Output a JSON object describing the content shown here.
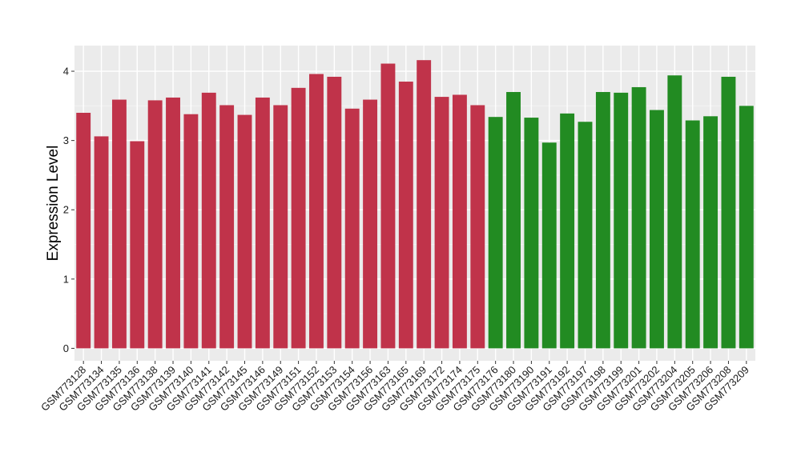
{
  "chart_data": {
    "type": "bar",
    "title": "",
    "xlabel": "",
    "ylabel": "Expression Level",
    "ylim": [
      -0.18,
      4.37
    ],
    "yticks": [
      0,
      1,
      2,
      3,
      4
    ],
    "grid": true,
    "legend": "none",
    "categories": [
      "GSM773128",
      "GSM773134",
      "GSM773135",
      "GSM773136",
      "GSM773138",
      "GSM773139",
      "GSM773140",
      "GSM773141",
      "GSM773142",
      "GSM773145",
      "GSM773146",
      "GSM773149",
      "GSM773151",
      "GSM773152",
      "GSM773153",
      "GSM773154",
      "GSM773156",
      "GSM773163",
      "GSM773165",
      "GSM773169",
      "GSM773172",
      "GSM773174",
      "GSM773175",
      "GSM773176",
      "GSM773180",
      "GSM773190",
      "GSM773191",
      "GSM773192",
      "GSM773197",
      "GSM773198",
      "GSM773199",
      "GSM773201",
      "GSM773202",
      "GSM773204",
      "GSM773205",
      "GSM773206",
      "GSM773208",
      "GSM773209"
    ],
    "values": [
      3.4,
      3.06,
      3.59,
      2.99,
      3.58,
      3.62,
      3.38,
      3.69,
      3.51,
      3.37,
      3.62,
      3.51,
      3.76,
      3.96,
      3.92,
      3.46,
      3.59,
      4.11,
      3.85,
      4.16,
      3.63,
      3.66,
      3.51,
      3.34,
      3.7,
      3.33,
      2.97,
      3.39,
      3.27,
      3.7,
      3.69,
      3.77,
      3.44,
      3.94,
      3.29,
      3.35,
      3.92,
      3.5
    ],
    "group_colors": [
      "#c0334a",
      "#c0334a",
      "#c0334a",
      "#c0334a",
      "#c0334a",
      "#c0334a",
      "#c0334a",
      "#c0334a",
      "#c0334a",
      "#c0334a",
      "#c0334a",
      "#c0334a",
      "#c0334a",
      "#c0334a",
      "#c0334a",
      "#c0334a",
      "#c0334a",
      "#c0334a",
      "#c0334a",
      "#c0334a",
      "#c0334a",
      "#c0334a",
      "#c0334a",
      "#228b22",
      "#228b22",
      "#228b22",
      "#228b22",
      "#228b22",
      "#228b22",
      "#228b22",
      "#228b22",
      "#228b22",
      "#228b22",
      "#228b22",
      "#228b22",
      "#228b22",
      "#228b22",
      "#228b22"
    ],
    "colors": {
      "panel": "#ebebeb",
      "grid_major": "#ffffff",
      "grid_minor": "#f5f5f5",
      "tick": "#333333"
    }
  }
}
